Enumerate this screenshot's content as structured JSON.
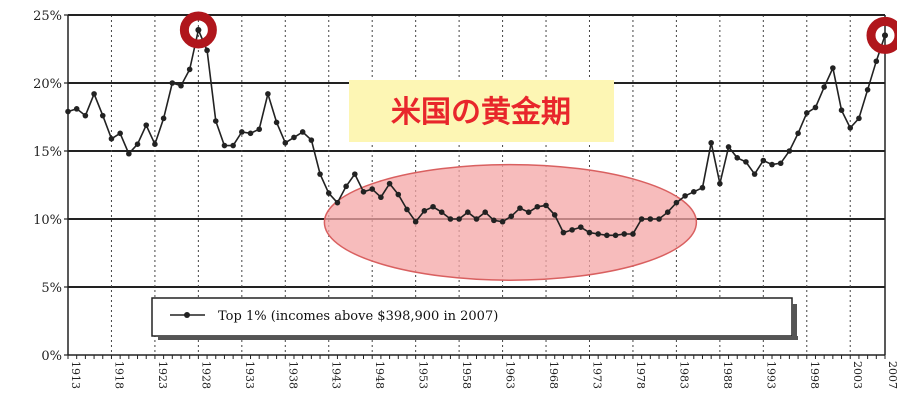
{
  "chart_data": {
    "type": "line",
    "title": "",
    "xlabel": "",
    "ylabel": "",
    "xlim": [
      1913,
      2007
    ],
    "ylim": [
      0,
      25
    ],
    "grid": true,
    "y_ticks": [
      "0%",
      "5%",
      "10%",
      "15%",
      "20%",
      "25%"
    ],
    "y_tick_values": [
      0,
      5,
      10,
      15,
      20,
      25
    ],
    "x_ticks": [
      "1913",
      "1918",
      "1923",
      "1928",
      "1933",
      "1938",
      "1943",
      "1948",
      "1953",
      "1958",
      "1963",
      "1968",
      "1973",
      "1978",
      "1983",
      "1988",
      "1993",
      "1998",
      "2003",
      "2007"
    ],
    "x_tick_values": [
      1913,
      1918,
      1923,
      1928,
      1933,
      1938,
      1943,
      1948,
      1953,
      1958,
      1963,
      1968,
      1973,
      1978,
      1983,
      1988,
      1993,
      1998,
      2003,
      2007
    ],
    "legend": "bottom-center",
    "series": [
      {
        "name": "Top 1% (incomes above $398,900 in 2007)",
        "color": "#222222",
        "x": [
          1913,
          1914,
          1915,
          1916,
          1917,
          1918,
          1919,
          1920,
          1921,
          1922,
          1923,
          1924,
          1925,
          1926,
          1927,
          1928,
          1929,
          1930,
          1931,
          1932,
          1933,
          1934,
          1935,
          1936,
          1937,
          1938,
          1939,
          1940,
          1941,
          1942,
          1943,
          1944,
          1945,
          1946,
          1947,
          1948,
          1949,
          1950,
          1951,
          1952,
          1953,
          1954,
          1955,
          1956,
          1957,
          1958,
          1959,
          1960,
          1961,
          1962,
          1963,
          1964,
          1965,
          1966,
          1967,
          1968,
          1969,
          1970,
          1971,
          1972,
          1973,
          1974,
          1975,
          1976,
          1977,
          1978,
          1979,
          1980,
          1981,
          1982,
          1983,
          1984,
          1985,
          1986,
          1987,
          1988,
          1989,
          1990,
          1991,
          1992,
          1993,
          1994,
          1995,
          1996,
          1997,
          1998,
          1999,
          2000,
          2001,
          2002,
          2003,
          2004,
          2005,
          2006,
          2007
        ],
        "values": [
          17.9,
          18.1,
          17.6,
          19.2,
          17.6,
          15.9,
          16.3,
          14.8,
          15.5,
          16.9,
          15.5,
          17.4,
          20.0,
          19.8,
          21.0,
          23.9,
          22.4,
          17.2,
          15.4,
          15.4,
          16.4,
          16.3,
          16.6,
          19.2,
          17.1,
          15.6,
          16.0,
          16.4,
          15.8,
          13.3,
          11.9,
          11.2,
          12.4,
          13.3,
          12.0,
          12.2,
          11.6,
          12.6,
          11.8,
          10.7,
          9.8,
          10.6,
          10.9,
          10.5,
          10.0,
          10.0,
          10.5,
          10.0,
          10.5,
          9.9,
          9.8,
          10.2,
          10.8,
          10.5,
          10.9,
          11.0,
          10.3,
          9.0,
          9.2,
          9.4,
          9.0,
          8.9,
          8.8,
          8.8,
          8.9,
          8.9,
          10.0,
          10.0,
          10.0,
          10.5,
          11.2,
          11.7,
          12.0,
          12.3,
          15.6,
          12.6,
          15.3,
          14.5,
          14.2,
          13.3,
          14.3,
          14.0,
          14.1,
          15.0,
          16.3,
          17.8,
          18.2,
          19.7,
          21.1,
          18.0,
          16.7,
          17.4,
          19.5,
          21.6,
          23.5
        ]
      }
    ],
    "highlights": {
      "overlay_title": "米国の黄金期",
      "overlay_title_bg": "#fdf6b4",
      "overlay_title_color": "#e8262b",
      "ellipse_color": "#f4a6a6",
      "ellipse_stroke": "#d96060",
      "peak_marker_color": "#b0161c",
      "peak_years": [
        1928,
        2007
      ]
    },
    "legend_label": "Top 1% (incomes above $398,900 in 2007)"
  }
}
